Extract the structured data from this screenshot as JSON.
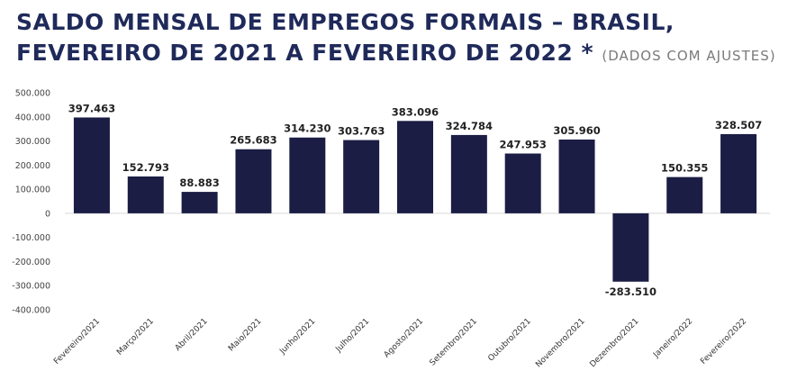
{
  "header": {
    "title_main": "SALDO MENSAL DE EMPREGOS FORMAIS – BRASIL, FEVEREIRO DE 2021 A FEVEREIRO DE 2022",
    "title_star": "*",
    "title_note": "(DADOS COM AJUSTES)"
  },
  "chart_data": {
    "type": "bar",
    "title": "SALDO MENSAL DE EMPREGOS FORMAIS – BRASIL, FEVEREIRO DE 2021 A FEVEREIRO DE 2022 * (DADOS COM AJUSTES)",
    "xlabel": "",
    "ylabel": "",
    "ylim": [
      -400000,
      500000
    ],
    "yticks": [
      500000,
      400000,
      300000,
      200000,
      100000,
      0,
      -100000,
      -200000,
      -300000,
      -400000
    ],
    "ytick_labels": [
      "500.000",
      "400.000",
      "300.000",
      "200.000",
      "100.000",
      "0",
      "-100.000",
      "-200.000",
      "-300.000",
      "-400.000"
    ],
    "categories": [
      "Fevereiro/2021",
      "Março/2021",
      "Abril/2021",
      "Maio/2021",
      "Junho/2021",
      "Julho/2021",
      "Agosto/2021",
      "Setembro/2021",
      "Outubro/2021",
      "Novembro/2021",
      "Dezembro/2021",
      "Janeiro/2022",
      "Fevereiro/2022"
    ],
    "values": [
      397463,
      152793,
      88883,
      265683,
      314230,
      303763,
      383096,
      324784,
      247953,
      305960,
      -283510,
      150355,
      328507
    ],
    "value_labels": [
      "397.463",
      "152.793",
      "88.883",
      "265.683",
      "314.230",
      "303.763",
      "383.096",
      "324.784",
      "247.953",
      "305.960",
      "-283.510",
      "150.355",
      "328.507"
    ],
    "bar_color": "#1b1d45",
    "grid": false,
    "legend": "none"
  }
}
